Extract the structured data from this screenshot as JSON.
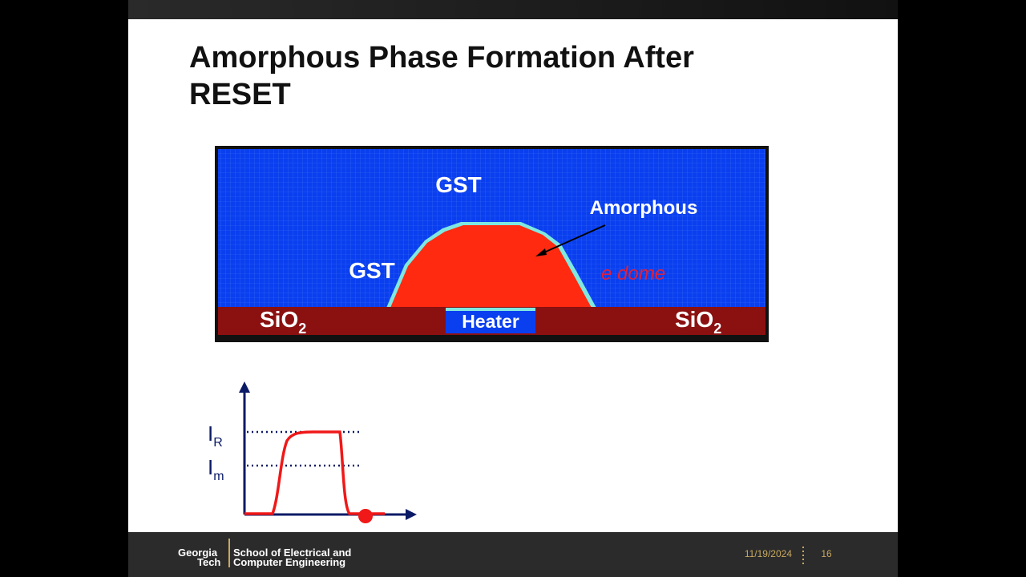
{
  "slide": {
    "title": "Amorphous Phase Formation After RESET",
    "figure": {
      "gst_top": "GST",
      "gst_left": "GST",
      "amorphous": "Amorphous",
      "sio2_left": {
        "base": "SiO",
        "sub": "2"
      },
      "sio2_right": {
        "base": "SiO",
        "sub": "2"
      },
      "heater": "Heater",
      "handwritten_note": "e dome"
    },
    "pulse_graph": {
      "reset_level": {
        "base": "I",
        "sub": "R"
      },
      "melt_level": {
        "base": "I",
        "sub": "m"
      }
    },
    "footer": {
      "logo_lines": [
        "Georgia",
        "Tech"
      ],
      "school_lines": [
        "School of Electrical and",
        "Computer Engineering"
      ],
      "date": "11/19/2024",
      "page_number": "16"
    }
  }
}
